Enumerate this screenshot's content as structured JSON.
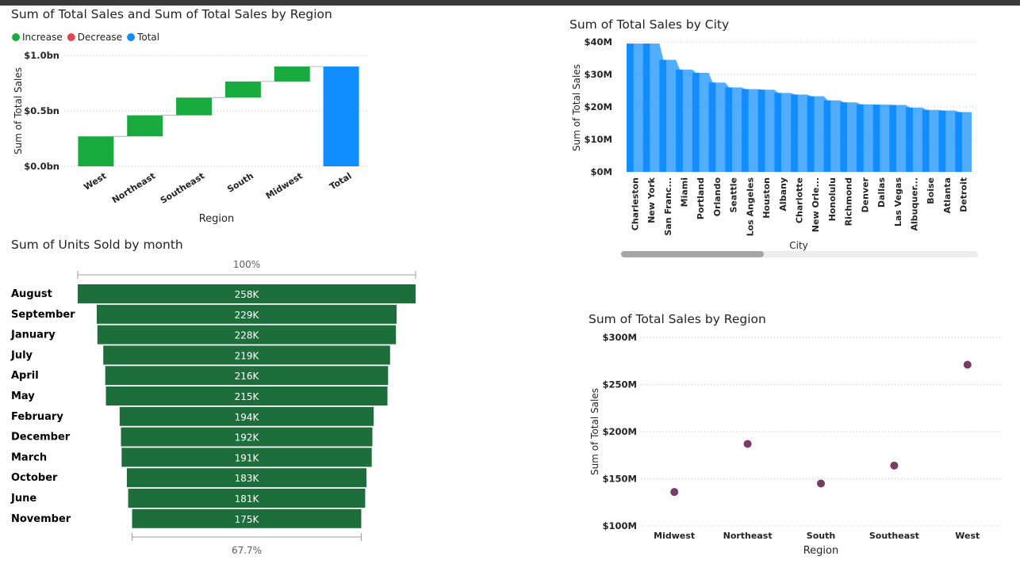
{
  "colors": {
    "increase": "#1aab40",
    "decrease": "#e04850",
    "total": "#118dff",
    "city_bar": "#118dff",
    "funnel": "#1e6e3c",
    "scatter": "#7a3b66"
  },
  "chart_data": [
    {
      "type": "waterfall",
      "title": "Sum of Total Sales and Sum of Total Sales by Region",
      "legend": {
        "position": "top-left",
        "entries": [
          "Increase",
          "Decrease",
          "Total"
        ]
      },
      "xlabel": "Region",
      "ylabel": "Sum of Total Sales",
      "categories": [
        "West",
        "Northeast",
        "Southeast",
        "South",
        "Midwest",
        "Total"
      ],
      "values": [
        0.27,
        0.19,
        0.16,
        0.145,
        0.135,
        0.9
      ],
      "ylim": [
        0,
        1.0
      ],
      "yticks": [
        "$0.0bn",
        "$0.5bn",
        "$1.0bn"
      ],
      "grid": true
    },
    {
      "type": "area",
      "title": "Sum of Total Sales by City",
      "xlabel": "City",
      "ylabel": "Sum of Total Sales",
      "categories": [
        "Charleston",
        "New York",
        "San Franc...",
        "Miami",
        "Portland",
        "Orlando",
        "Seattle",
        "Los Angeles",
        "Houston",
        "Albany",
        "Charlotte",
        "New Orle...",
        "Honolulu",
        "Richmond",
        "Denver",
        "Dallas",
        "Las Vegas",
        "Albuquer...",
        "Boise",
        "Atlanta",
        "Detroit"
      ],
      "values": [
        39.5,
        39.5,
        34.5,
        31.5,
        30.5,
        27.5,
        26.0,
        25.5,
        25.3,
        24.3,
        23.8,
        23.3,
        22.0,
        21.4,
        20.8,
        20.7,
        20.6,
        19.8,
        19.1,
        18.9,
        18.4
      ],
      "ylim": [
        0,
        40
      ],
      "yticks": [
        "$0M",
        "$10M",
        "$20M",
        "$30M",
        "$40M"
      ],
      "scrollbar": true,
      "grid": true
    },
    {
      "type": "funnel",
      "title": "Sum of Units Sold by month",
      "categories": [
        "August",
        "September",
        "January",
        "July",
        "April",
        "May",
        "February",
        "December",
        "March",
        "October",
        "June",
        "November"
      ],
      "values": [
        258,
        229,
        228,
        219,
        216,
        215,
        194,
        192,
        191,
        183,
        181,
        175
      ],
      "labels": [
        "258K",
        "229K",
        "228K",
        "219K",
        "216K",
        "215K",
        "194K",
        "192K",
        "191K",
        "183K",
        "181K",
        "175K"
      ],
      "top_percent": "100%",
      "bottom_percent": "67.7%"
    },
    {
      "type": "scatter",
      "title": "Sum of Total Sales by Region",
      "xlabel": "Region",
      "ylabel": "Sum of Total Sales",
      "categories": [
        "Midwest",
        "Northeast",
        "South",
        "Southeast",
        "West"
      ],
      "values": [
        136,
        187,
        145,
        164,
        271
      ],
      "ylim": [
        100,
        300
      ],
      "yticks": [
        "$100M",
        "$150M",
        "$200M",
        "$250M",
        "$300M"
      ],
      "grid": true
    }
  ]
}
